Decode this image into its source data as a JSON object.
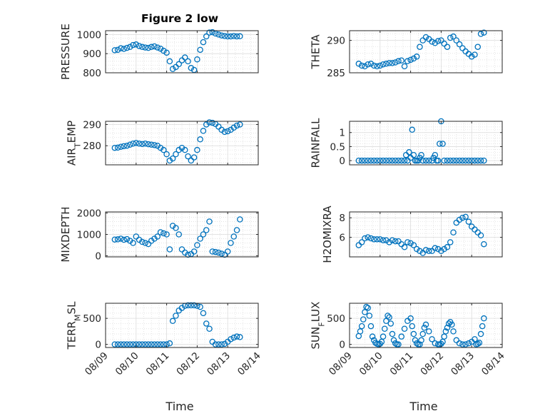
{
  "figure": {
    "title": "Figure 2 low",
    "xlabel": "Time",
    "marker_color": "#0072BD",
    "xticks": [
      "08/09",
      "08/10",
      "08/11",
      "08/12",
      "08/13",
      "08/14"
    ]
  },
  "chart_data": [
    {
      "type": "scatter",
      "ylabel": "PRESSURE",
      "ylim": [
        800,
        1020
      ],
      "yticks": [
        "800",
        "900",
        "1000"
      ],
      "grid": true,
      "title": "Figure 2 low",
      "x": [
        9.3,
        9.4,
        9.5,
        9.6,
        9.7,
        9.8,
        9.9,
        10.0,
        10.1,
        10.2,
        10.3,
        10.4,
        10.5,
        10.6,
        10.7,
        10.8,
        10.9,
        11.0,
        11.1,
        11.2,
        11.3,
        11.4,
        11.5,
        11.6,
        11.7,
        11.8,
        11.9,
        12.0,
        12.1,
        12.2,
        12.3,
        12.4,
        12.5,
        12.6,
        12.7,
        12.8,
        12.9,
        13.0,
        13.1,
        13.2,
        13.3,
        13.4
      ],
      "y": [
        918,
        920,
        928,
        925,
        930,
        935,
        945,
        948,
        940,
        935,
        932,
        930,
        935,
        938,
        932,
        926,
        915,
        905,
        860,
        820,
        830,
        845,
        865,
        880,
        860,
        825,
        815,
        870,
        920,
        960,
        990,
        1010,
        1012,
        1005,
        1000,
        995,
        992,
        990,
        990,
        992,
        990,
        991
      ]
    },
    {
      "type": "scatter",
      "ylabel": "THETA",
      "ylim": [
        285,
        291.5
      ],
      "yticks": [
        "285",
        "290"
      ],
      "grid": true,
      "x": [
        9.3,
        9.4,
        9.5,
        9.6,
        9.7,
        9.8,
        9.9,
        10.0,
        10.1,
        10.2,
        10.3,
        10.4,
        10.5,
        10.6,
        10.7,
        10.8,
        10.9,
        11.0,
        11.1,
        11.2,
        11.3,
        11.4,
        11.5,
        11.6,
        11.7,
        11.8,
        11.9,
        12.0,
        12.1,
        12.2,
        12.3,
        12.4,
        12.5,
        12.6,
        12.7,
        12.8,
        12.9,
        13.0,
        13.1,
        13.2,
        13.3,
        13.4
      ],
      "y": [
        286.4,
        286.1,
        286.0,
        286.3,
        286.4,
        286.1,
        286.0,
        286.1,
        286.3,
        286.4,
        286.5,
        286.5,
        286.6,
        286.8,
        286.9,
        286.0,
        286.8,
        287.0,
        287.2,
        287.5,
        289.0,
        290.0,
        290.5,
        290.2,
        289.8,
        289.6,
        289.9,
        290.0,
        289.5,
        289.0,
        290.4,
        290.6,
        290.0,
        289.4,
        288.8,
        288.3,
        287.9,
        287.5,
        287.8,
        289.0,
        291.0,
        291.2
      ]
    },
    {
      "type": "scatter",
      "ylabel": "AIR_TEMP",
      "ylim": [
        271,
        291.5
      ],
      "yticks": [
        "280",
        "290"
      ],
      "grid": true,
      "x": [
        9.3,
        9.4,
        9.5,
        9.6,
        9.7,
        9.8,
        9.9,
        10.0,
        10.1,
        10.2,
        10.3,
        10.4,
        10.5,
        10.6,
        10.7,
        10.8,
        10.9,
        11.0,
        11.1,
        11.2,
        11.3,
        11.4,
        11.5,
        11.6,
        11.7,
        11.8,
        11.9,
        12.0,
        12.1,
        12.2,
        12.3,
        12.4,
        12.5,
        12.6,
        12.7,
        12.8,
        12.9,
        13.0,
        13.1,
        13.2,
        13.3,
        13.4
      ],
      "y": [
        279.0,
        279.1,
        279.5,
        279.8,
        280.0,
        280.5,
        281.0,
        281.3,
        281.0,
        280.8,
        281.0,
        280.7,
        280.5,
        280.3,
        280.0,
        279.0,
        278.0,
        276.0,
        273.0,
        274.0,
        276.0,
        278.0,
        279.0,
        278.0,
        275.0,
        273.0,
        274.5,
        278.0,
        283.0,
        287.0,
        290.0,
        291.0,
        290.8,
        290.2,
        289.0,
        287.5,
        286.5,
        286.8,
        287.5,
        288.5,
        289.5,
        290.0
      ]
    },
    {
      "type": "scatter",
      "ylabel": "RAINFALL",
      "ylim": [
        -0.15,
        1.4
      ],
      "yticks": [
        "0",
        "0.5",
        "1"
      ],
      "grid": true,
      "x": [
        9.3,
        9.4,
        9.5,
        9.6,
        9.7,
        9.8,
        9.9,
        10.0,
        10.1,
        10.2,
        10.3,
        10.4,
        10.5,
        10.6,
        10.7,
        10.8,
        10.85,
        10.9,
        10.95,
        11.0,
        11.05,
        11.1,
        11.15,
        11.2,
        11.25,
        11.3,
        11.35,
        11.4,
        11.5,
        11.6,
        11.7,
        11.75,
        11.8,
        11.85,
        11.9,
        11.95,
        12.0,
        12.05,
        12.1,
        12.2,
        12.3,
        12.4,
        12.5,
        12.6,
        12.7,
        12.8,
        12.9,
        13.0,
        13.1,
        13.2,
        13.3,
        13.4
      ],
      "y": [
        0,
        0,
        0,
        0,
        0,
        0,
        0,
        0,
        0,
        0,
        0,
        0,
        0,
        0,
        0,
        0,
        0.2,
        0,
        0.3,
        0.1,
        1.1,
        0.2,
        0,
        0,
        0,
        0.1,
        0.2,
        0,
        0,
        0,
        0,
        0.1,
        0.2,
        0,
        0,
        0.6,
        1.4,
        0.6,
        0,
        0,
        0,
        0,
        0,
        0,
        0,
        0,
        0,
        0,
        0,
        0,
        0,
        0
      ]
    },
    {
      "type": "scatter",
      "ylabel": "MIXDEPTH",
      "ylim": [
        -50,
        2050
      ],
      "yticks": [
        "0",
        "1000",
        "2000"
      ],
      "grid": true,
      "x": [
        9.3,
        9.4,
        9.5,
        9.6,
        9.7,
        9.8,
        9.9,
        10.0,
        10.1,
        10.2,
        10.3,
        10.4,
        10.5,
        10.6,
        10.7,
        10.8,
        10.9,
        11.0,
        11.1,
        11.2,
        11.3,
        11.4,
        11.5,
        11.6,
        11.7,
        11.8,
        11.9,
        12.0,
        12.1,
        12.2,
        12.3,
        12.4,
        12.5,
        12.6,
        12.7,
        12.8,
        12.9,
        13.0,
        13.1,
        13.2,
        13.3,
        13.4
      ],
      "y": [
        760,
        770,
        800,
        750,
        780,
        700,
        600,
        900,
        750,
        650,
        600,
        550,
        700,
        800,
        900,
        1100,
        1050,
        1000,
        300,
        1400,
        1300,
        1000,
        300,
        150,
        50,
        80,
        200,
        500,
        800,
        1000,
        1200,
        1600,
        200,
        180,
        150,
        100,
        50,
        200,
        600,
        900,
        1200,
        1700
      ]
    },
    {
      "type": "scatter",
      "ylabel": "H2OMIXRA",
      "ylim": [
        4.0,
        8.6
      ],
      "yticks": [
        "6",
        "8"
      ],
      "grid": true,
      "x": [
        9.3,
        9.4,
        9.5,
        9.6,
        9.7,
        9.8,
        9.9,
        10.0,
        10.1,
        10.2,
        10.3,
        10.4,
        10.5,
        10.6,
        10.7,
        10.8,
        10.9,
        11.0,
        11.1,
        11.2,
        11.3,
        11.4,
        11.5,
        11.6,
        11.7,
        11.8,
        11.9,
        12.0,
        12.1,
        12.2,
        12.3,
        12.4,
        12.5,
        12.6,
        12.7,
        12.8,
        12.9,
        13.0,
        13.1,
        13.2,
        13.3,
        13.4
      ],
      "y": [
        5.2,
        5.5,
        5.9,
        6.0,
        5.9,
        5.8,
        5.8,
        5.8,
        5.7,
        5.7,
        5.5,
        5.7,
        5.6,
        5.6,
        5.3,
        5.0,
        5.5,
        5.4,
        5.2,
        4.8,
        4.6,
        4.4,
        4.7,
        4.6,
        4.6,
        4.9,
        4.8,
        4.6,
        4.8,
        5.0,
        5.5,
        6.5,
        7.5,
        7.8,
        8.0,
        8.1,
        7.6,
        7.1,
        6.8,
        6.5,
        6.2,
        5.3
      ]
    },
    {
      "type": "scatter",
      "ylabel": "TERR_MSL",
      "ylim": [
        -60,
        790
      ],
      "yticks": [
        "0",
        "500"
      ],
      "grid": true,
      "x": [
        9.3,
        9.4,
        9.5,
        9.6,
        9.7,
        9.8,
        9.9,
        10.0,
        10.1,
        10.2,
        10.3,
        10.4,
        10.5,
        10.6,
        10.7,
        10.8,
        10.9,
        11.0,
        11.1,
        11.2,
        11.3,
        11.4,
        11.5,
        11.6,
        11.7,
        11.8,
        11.9,
        12.0,
        12.1,
        12.2,
        12.3,
        12.4,
        12.5,
        12.6,
        12.7,
        12.8,
        12.9,
        13.0,
        13.1,
        13.2,
        13.3,
        13.4
      ],
      "y": [
        0,
        0,
        0,
        0,
        0,
        0,
        0,
        0,
        0,
        0,
        0,
        0,
        0,
        0,
        0,
        0,
        0,
        0,
        20,
        450,
        550,
        650,
        700,
        740,
        750,
        750,
        750,
        740,
        720,
        600,
        400,
        300,
        50,
        0,
        0,
        0,
        10,
        50,
        100,
        130,
        150,
        140
      ]
    },
    {
      "type": "scatter",
      "ylabel": "SUN_FLUX",
      "ylim": [
        -60,
        790
      ],
      "yticks": [
        "0",
        "500"
      ],
      "grid": true,
      "x": [
        9.3,
        9.35,
        9.4,
        9.45,
        9.5,
        9.55,
        9.6,
        9.65,
        9.7,
        9.75,
        9.8,
        9.85,
        9.9,
        9.95,
        10.0,
        10.05,
        10.1,
        10.15,
        10.2,
        10.25,
        10.3,
        10.35,
        10.4,
        10.45,
        10.5,
        10.55,
        10.6,
        10.7,
        10.8,
        10.9,
        11.0,
        11.05,
        11.1,
        11.15,
        11.2,
        11.25,
        11.3,
        11.35,
        11.4,
        11.45,
        11.5,
        11.6,
        11.7,
        11.8,
        11.9,
        11.95,
        12.0,
        12.05,
        12.1,
        12.15,
        12.2,
        12.25,
        12.3,
        12.35,
        12.4,
        12.5,
        12.6,
        12.7,
        12.8,
        12.9,
        13.0,
        13.1,
        13.15,
        13.2,
        13.25,
        13.3,
        13.35,
        13.4
      ],
      "y": [
        160,
        250,
        350,
        480,
        620,
        720,
        700,
        550,
        350,
        150,
        80,
        30,
        10,
        0,
        10,
        50,
        150,
        300,
        450,
        550,
        520,
        400,
        200,
        80,
        20,
        0,
        0,
        150,
        300,
        450,
        500,
        350,
        200,
        80,
        20,
        0,
        0,
        80,
        200,
        320,
        380,
        250,
        100,
        20,
        0,
        0,
        10,
        50,
        150,
        250,
        320,
        400,
        430,
        380,
        250,
        80,
        20,
        0,
        0,
        20,
        50,
        100,
        0,
        10,
        30,
        200,
        350,
        500
      ]
    }
  ]
}
